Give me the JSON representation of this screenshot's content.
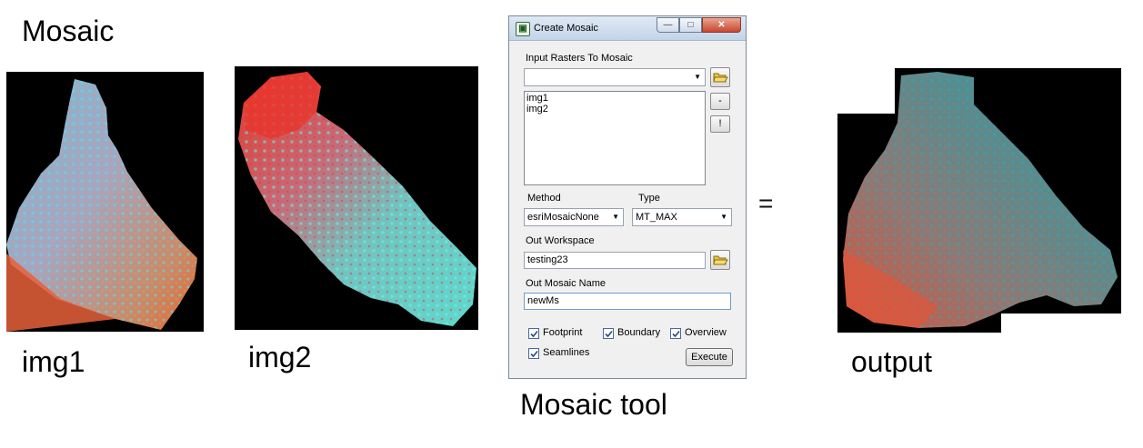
{
  "captions": {
    "title": "Mosaic",
    "img1": "img1",
    "img2": "img2",
    "tool": "Mosaic tool",
    "output": "output",
    "equals": "="
  },
  "dialog": {
    "title": "Create Mosaic",
    "input_label": "Input Rasters To Mosaic",
    "input_combo_value": "",
    "rasters": [
      "img1",
      "img2"
    ],
    "remove_label": "-",
    "clear_label": "!",
    "method_label": "Method",
    "method_value": "esriMosaicNone",
    "type_label": "Type",
    "type_value": "MT_MAX",
    "workspace_label": "Out Workspace",
    "workspace_value": "testing23",
    "name_label": "Out Mosaic Name",
    "name_value": "newMs",
    "options": {
      "footprint": {
        "label": "Footprint",
        "checked": true
      },
      "boundary": {
        "label": "Boundary",
        "checked": true
      },
      "overview": {
        "label": "Overview",
        "checked": true
      },
      "seamlines": {
        "label": "Seamlines",
        "checked": true
      }
    },
    "execute_label": "Execute",
    "minimize_glyph": "—",
    "maximize_glyph": "□",
    "close_glyph": "✕"
  },
  "colors": {
    "raster_background": "#000000",
    "raster_blue": "#7fa9c9",
    "raster_red": "#e0412f",
    "raster_cyan": "#5fd8cc",
    "output_teal": "#4f8f94"
  }
}
